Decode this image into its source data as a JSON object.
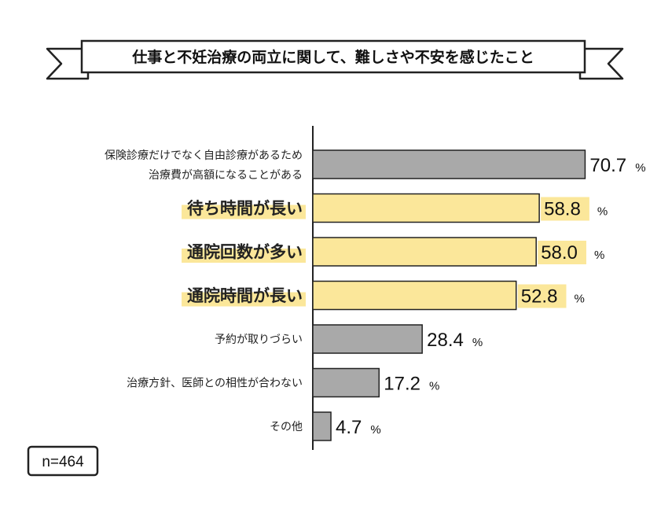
{
  "chart_data": {
    "type": "bar",
    "orientation": "horizontal",
    "title": "仕事と不妊治療の両立に関して、難しさや不安を感じたこと",
    "sample_note": "n=464",
    "unit": "%",
    "xlim": [
      0,
      100
    ],
    "grid": false,
    "categories": [
      [
        "保険診療だけでなく自由診療があるため",
        "治療費が高額になることがある"
      ],
      [
        "待ち時間が長い"
      ],
      [
        "通院回数が多い"
      ],
      [
        "通院時間が長い"
      ],
      [
        "予約が取りづらい"
      ],
      [
        "治療方針、医師との相性が合わない"
      ],
      [
        "その他"
      ]
    ],
    "values": [
      70.7,
      58.8,
      58.0,
      52.8,
      28.4,
      17.2,
      4.7
    ],
    "value_labels": [
      "70.7",
      "58.8",
      "58.0",
      "52.8",
      "28.4",
      "17.2",
      "4.7"
    ],
    "highlighted": [
      false,
      true,
      true,
      true,
      false,
      false,
      false
    ]
  },
  "colors": {
    "bar_default": "#a9a9a9",
    "bar_highlight": "#fbe79a",
    "label_highlight": "#fbe79a",
    "stroke": "#222222"
  }
}
